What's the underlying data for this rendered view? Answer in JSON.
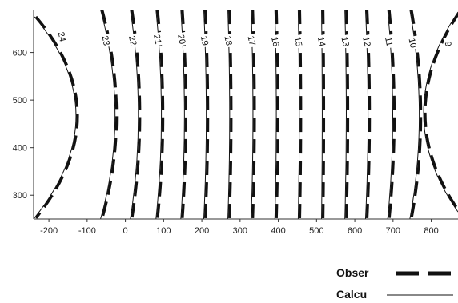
{
  "chart_data": {
    "type": "contour",
    "title": "",
    "xlabel": "",
    "ylabel": "",
    "xlim": [
      -240,
      870
    ],
    "ylim": [
      250,
      690
    ],
    "xticks": [
      -200,
      -100,
      0,
      100,
      200,
      300,
      400,
      500,
      600,
      700,
      800
    ],
    "yticks": [
      300,
      400,
      500,
      600
    ],
    "grid": false,
    "legend": {
      "placement": "bottom-right",
      "entries": [
        {
          "label": "Obser",
          "style": "dashed-thick"
        },
        {
          "label": "Calcu",
          "style": "solid-thin"
        }
      ]
    },
    "contours": [
      {
        "level": "24",
        "type": "curve",
        "x_mid": -95,
        "x_ends": -225,
        "label_x": -165,
        "label_y": 633
      },
      {
        "level": "23",
        "x_mid": -25,
        "x_ends": -65,
        "label_x": -50,
        "label_y": 625
      },
      {
        "level": "22",
        "x_mid": 35,
        "x_ends": 13,
        "label_x": 20,
        "label_y": 625
      },
      {
        "level": "21",
        "x_mid": 95,
        "x_ends": 80,
        "label_x": 85,
        "label_y": 628
      },
      {
        "level": "20",
        "x_mid": 155,
        "x_ends": 145,
        "label_x": 148,
        "label_y": 628
      },
      {
        "level": "19",
        "x_mid": 212,
        "x_ends": 205,
        "label_x": 208,
        "label_y": 625
      },
      {
        "level": "18",
        "x_mid": 273,
        "x_ends": 268,
        "label_x": 270,
        "label_y": 625
      },
      {
        "level": "17",
        "x_mid": 334,
        "x_ends": 329,
        "label_x": 331,
        "label_y": 625
      },
      {
        "level": "16",
        "x_mid": 395,
        "x_ends": 391,
        "label_x": 393,
        "label_y": 623
      },
      {
        "level": "15",
        "x_mid": 455,
        "x_ends": 452,
        "label_x": 453,
        "label_y": 623
      },
      {
        "level": "14",
        "x_mid": 515,
        "x_ends": 513,
        "label_x": 514,
        "label_y": 623
      },
      {
        "level": "13",
        "x_mid": 578,
        "x_ends": 574,
        "label_x": 576,
        "label_y": 623
      },
      {
        "level": "12",
        "x_mid": 635,
        "x_ends": 628,
        "label_x": 632,
        "label_y": 623
      },
      {
        "level": "11",
        "x_mid": 700,
        "x_ends": 686,
        "label_x": 690,
        "label_y": 623
      },
      {
        "level": "10",
        "x_mid": 770,
        "x_ends": 744,
        "label_x": 752,
        "label_y": 620
      },
      {
        "level": "9",
        "type": "curve",
        "x_mid": 820,
        "label_x": 845,
        "label_y": 618
      }
    ]
  }
}
